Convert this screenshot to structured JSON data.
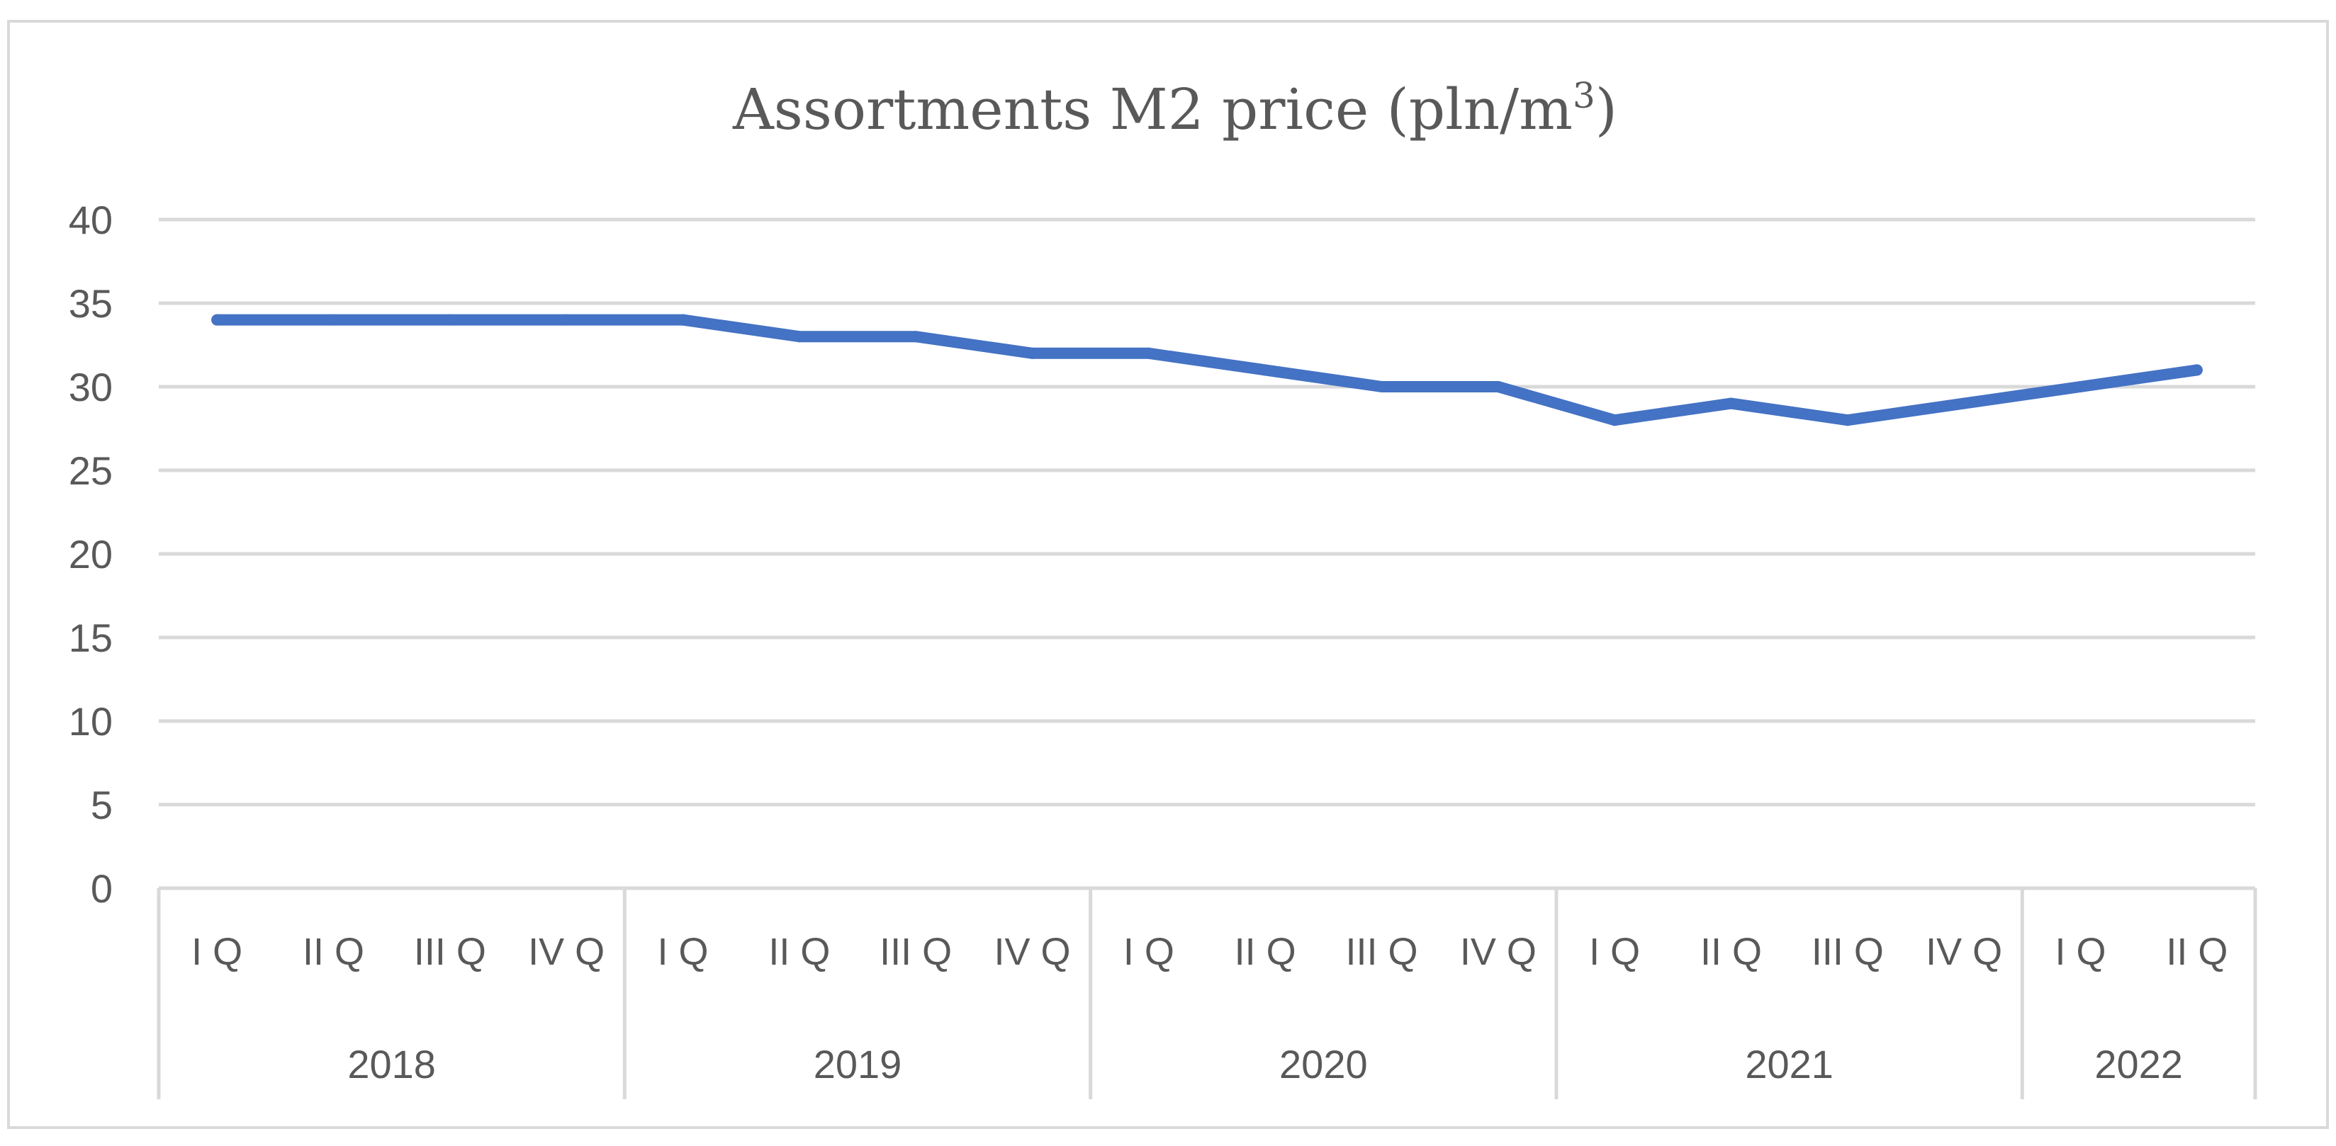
{
  "chart_data": {
    "type": "line",
    "title": "Assortments M2 price (pln/m",
    "title_superscript": "3",
    "title_suffix": ")",
    "xlabel": "",
    "ylabel": "",
    "ylim": [
      0,
      40
    ],
    "yticks": [
      0,
      5,
      10,
      15,
      20,
      25,
      30,
      35,
      40
    ],
    "grid": true,
    "legend": "none",
    "categories": [
      "I Q",
      "II Q",
      "III Q",
      "IV Q",
      "I Q",
      "II Q",
      "III Q",
      "IV Q",
      "I Q",
      "II Q",
      "III Q",
      "IV Q",
      "I Q",
      "II Q",
      "III Q",
      "IV Q",
      "I Q",
      "II Q"
    ],
    "groups": [
      {
        "label": "2018",
        "count": 4
      },
      {
        "label": "2019",
        "count": 4
      },
      {
        "label": "2020",
        "count": 4
      },
      {
        "label": "2021",
        "count": 4
      },
      {
        "label": "2022",
        "count": 2
      }
    ],
    "series": [
      {
        "name": "Assortments M2 price",
        "color": "#4472c4",
        "values": [
          34,
          34,
          34,
          34,
          34,
          33,
          33,
          32,
          32,
          31,
          30,
          30,
          28,
          29,
          28,
          29,
          30,
          31
        ]
      }
    ],
    "colors": {
      "grid": "#d9d9d9",
      "text": "#595959",
      "line": "#4472c4"
    }
  }
}
